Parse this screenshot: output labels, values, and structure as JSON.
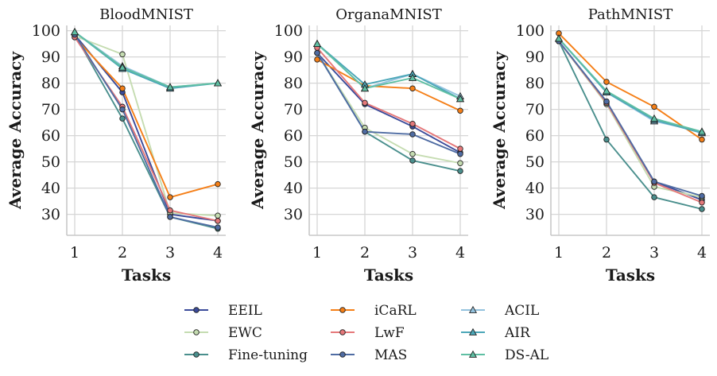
{
  "figure": {
    "legend_placement": "bottom-center",
    "legend_columns": 3
  },
  "chart_data": [
    {
      "type": "line",
      "title": "BloodMNIST",
      "xlabel": "Tasks",
      "ylabel": "Average Accuracy",
      "categories": [
        "1",
        "2",
        "3",
        "4"
      ],
      "ylim": [
        22,
        102
      ],
      "yticks": [
        30,
        40,
        50,
        60,
        70,
        80,
        90,
        100
      ],
      "grid": true,
      "series": [
        {
          "name": "EEIL",
          "values": [
            98.5,
            76.5,
            30,
            27.5
          ]
        },
        {
          "name": "EWC",
          "values": [
            98,
            91,
            30.5,
            29.5
          ]
        },
        {
          "name": "Fine-tuning",
          "values": [
            98.5,
            66.5,
            29,
            24.5
          ]
        },
        {
          "name": "iCaRL",
          "values": [
            97.5,
            78,
            36.5,
            41.5
          ]
        },
        {
          "name": "LwF",
          "values": [
            97.5,
            71,
            31.5,
            27.5
          ]
        },
        {
          "name": "MAS",
          "values": [
            98.5,
            70,
            29,
            25
          ]
        },
        {
          "name": "ACIL",
          "values": [
            99.5,
            86.5,
            78.5,
            80
          ]
        },
        {
          "name": "AIR",
          "values": [
            99.5,
            85.5,
            78,
            80
          ]
        },
        {
          "name": "DS-AL",
          "values": [
            99.5,
            86,
            78.5,
            80
          ]
        }
      ]
    },
    {
      "type": "line",
      "title": "OrganaMNIST",
      "xlabel": "Tasks",
      "ylabel": "Average Accuracy",
      "categories": [
        "1",
        "2",
        "3",
        "4"
      ],
      "ylim": [
        22,
        102
      ],
      "yticks": [
        30,
        40,
        50,
        60,
        70,
        80,
        90,
        100
      ],
      "grid": true,
      "series": [
        {
          "name": "EEIL",
          "values": [
            91.5,
            72,
            63.5,
            53.5
          ]
        },
        {
          "name": "EWC",
          "values": [
            91.5,
            63,
            53,
            49.5
          ]
        },
        {
          "name": "Fine-tuning",
          "values": [
            91.5,
            61.5,
            50.5,
            46.5
          ]
        },
        {
          "name": "iCaRL",
          "values": [
            89,
            79,
            78,
            69.5
          ]
        },
        {
          "name": "LwF",
          "values": [
            93.5,
            72.5,
            64.5,
            55
          ]
        },
        {
          "name": "MAS",
          "values": [
            91.5,
            61.5,
            60.5,
            53
          ]
        },
        {
          "name": "ACIL",
          "values": [
            95,
            78,
            83.5,
            75
          ]
        },
        {
          "name": "AIR",
          "values": [
            95,
            79.5,
            83.5,
            74
          ]
        },
        {
          "name": "DS-AL",
          "values": [
            95,
            78,
            82,
            74
          ]
        }
      ]
    },
    {
      "type": "line",
      "title": "PathMNIST",
      "xlabel": "Tasks",
      "ylabel": "Average Accuracy",
      "categories": [
        "1",
        "2",
        "3",
        "4"
      ],
      "ylim": [
        22,
        102
      ],
      "yticks": [
        30,
        40,
        50,
        60,
        70,
        80,
        90,
        100
      ],
      "grid": true,
      "series": [
        {
          "name": "EEIL",
          "values": [
            96,
            73,
            42.5,
            35.5
          ]
        },
        {
          "name": "EWC",
          "values": [
            96,
            72,
            40.5,
            36.5
          ]
        },
        {
          "name": "Fine-tuning",
          "values": [
            96,
            58.5,
            36.5,
            32
          ]
        },
        {
          "name": "iCaRL",
          "values": [
            99,
            80.5,
            71,
            58.5
          ]
        },
        {
          "name": "LwF",
          "values": [
            96,
            72.5,
            42,
            34.5
          ]
        },
        {
          "name": "MAS",
          "values": [
            96,
            73,
            42.5,
            37
          ]
        },
        {
          "name": "ACIL",
          "values": [
            97,
            76.5,
            65.5,
            61.5
          ]
        },
        {
          "name": "AIR",
          "values": [
            97,
            76.5,
            66,
            61
          ]
        },
        {
          "name": "DS-AL",
          "values": [
            97,
            77,
            66.5,
            61.5
          ]
        }
      ]
    }
  ],
  "series_style": {
    "EEIL": {
      "color": "#3b4b9a",
      "marker": "circle"
    },
    "EWC": {
      "color": "#c5dcb1",
      "marker": "circle"
    },
    "Fine-tuning": {
      "color": "#4a8f8d",
      "marker": "circle"
    },
    "iCaRL": {
      "color": "#f57f17",
      "marker": "circle"
    },
    "LwF": {
      "color": "#e5787a",
      "marker": "circle"
    },
    "MAS": {
      "color": "#4f6ca3",
      "marker": "circle"
    },
    "ACIL": {
      "color": "#93c2de",
      "marker": "triangle"
    },
    "AIR": {
      "color": "#4ca7b8",
      "marker": "triangle"
    },
    "DS-AL": {
      "color": "#5fbfa3",
      "marker": "triangle"
    }
  }
}
